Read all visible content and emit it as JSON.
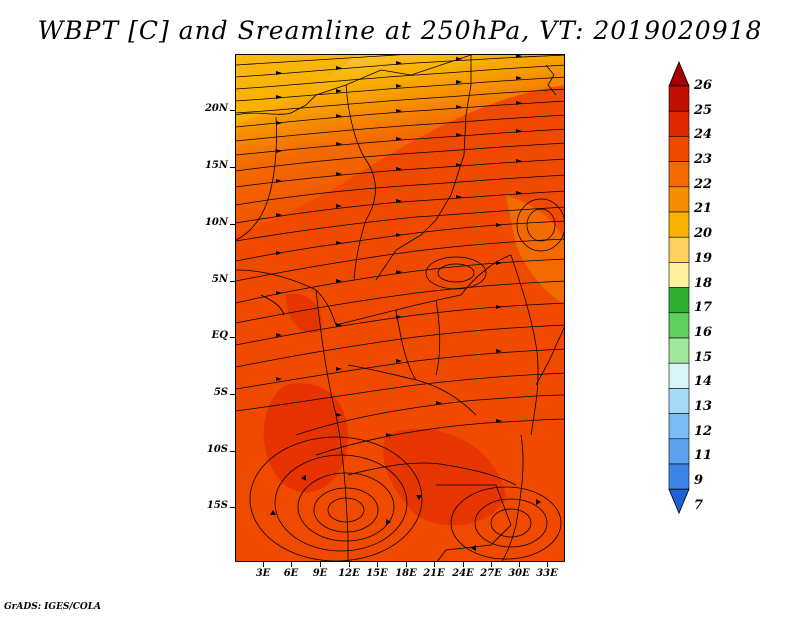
{
  "title": "WBPT [C] and Sreamline at 250hPa, VT: 2019020918",
  "credit": "GrADS: IGES/COLA",
  "lat_labels": [
    "20N",
    "15N",
    "10N",
    "5N",
    "EQ",
    "5S",
    "10S",
    "15S"
  ],
  "lon_labels": [
    "3E",
    "6E",
    "9E",
    "12E",
    "15E",
    "18E",
    "21E",
    "24E",
    "27E",
    "30E",
    "33E"
  ],
  "colorbar": {
    "labels": [
      "26",
      "25",
      "24",
      "23",
      "22",
      "21",
      "20",
      "19",
      "18",
      "17",
      "16",
      "15",
      "14",
      "13",
      "12",
      "11",
      "9",
      "7"
    ],
    "colors": [
      "#a50000",
      "#c01000",
      "#e02800",
      "#f04a00",
      "#f36a00",
      "#f58f00",
      "#f9b200",
      "#fbd060",
      "#fff0a0",
      "#30b030",
      "#60d060",
      "#a0e8a0",
      "#d8f4f4",
      "#a8d8f8",
      "#7cbcf4",
      "#5aa2ee",
      "#3e84e6",
      "#2060d8"
    ]
  },
  "map_colors": {
    "dominant": "#f04a00",
    "cool_north": "#f9b200",
    "warm_core": "#e02800"
  }
}
